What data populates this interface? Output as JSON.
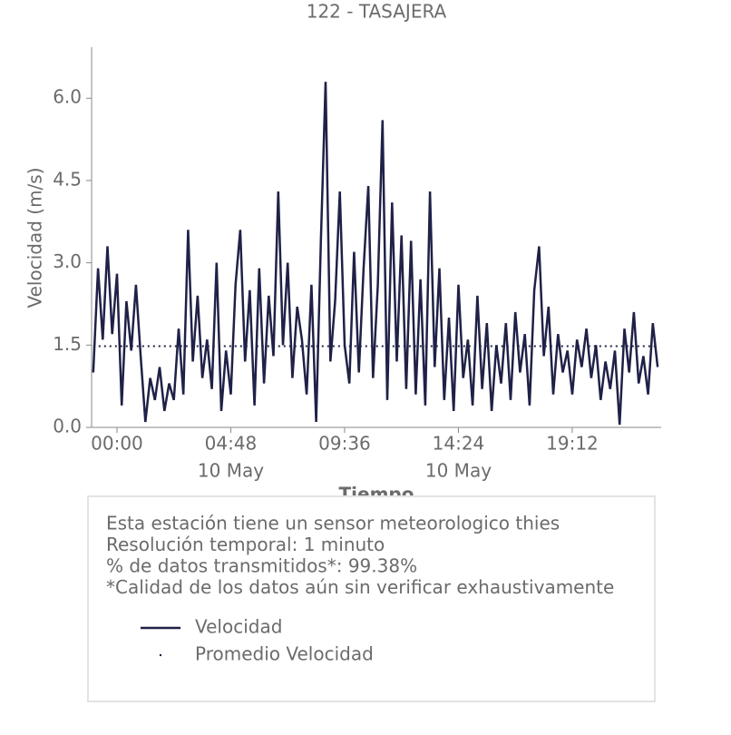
{
  "chart_data": {
    "type": "line",
    "title": "122 - TASAJERA",
    "xlabel": "Tiempo",
    "ylabel": "Velocidad (m/s)",
    "xlim": [
      -1.07,
      22.95
    ],
    "ylim": [
      0,
      6.93
    ],
    "xticks": [
      {
        "value": 0,
        "label": "00:00"
      },
      {
        "value": 4.8,
        "label": "04:48",
        "date": "10 May"
      },
      {
        "value": 9.6,
        "label": "09:36"
      },
      {
        "value": 14.4,
        "label": "14:24",
        "date": "10 May"
      },
      {
        "value": 19.2,
        "label": "19:12"
      }
    ],
    "yticks": [
      {
        "value": 0,
        "label": "0.0"
      },
      1.5,
      {
        "value": 3,
        "label": "3.0"
      },
      4.5,
      {
        "value": 6,
        "label": "6.0"
      }
    ],
    "notes": [
      "Esta estación tiene un sensor meteorologico thies",
      "Resolución temporal: 1 minuto",
      "% de datos transmitidos*: 99.38%",
      "*Calidad de los datos aún sin verificar exhaustivamente"
    ],
    "series": [
      {
        "name": "Velocidad",
        "color": "#1f2147",
        "style": "solid",
        "x": [
          -1.0,
          -0.8,
          -0.6,
          -0.4,
          -0.2,
          0.0,
          0.2,
          0.4,
          0.6,
          0.8,
          1.0,
          1.2,
          1.4,
          1.6,
          1.8,
          2.0,
          2.2,
          2.4,
          2.6,
          2.8,
          3.0,
          3.2,
          3.4,
          3.6,
          3.8,
          4.0,
          4.2,
          4.4,
          4.6,
          4.8,
          5.0,
          5.2,
          5.4,
          5.6,
          5.8,
          6.0,
          6.2,
          6.4,
          6.6,
          6.8,
          7.0,
          7.2,
          7.4,
          7.6,
          7.8,
          8.0,
          8.2,
          8.4,
          8.6,
          8.8,
          9.0,
          9.2,
          9.4,
          9.6,
          9.8,
          10.0,
          10.2,
          10.4,
          10.6,
          10.8,
          11.0,
          11.2,
          11.4,
          11.6,
          11.8,
          12.0,
          12.2,
          12.4,
          12.6,
          12.8,
          13.0,
          13.2,
          13.4,
          13.6,
          13.8,
          14.0,
          14.2,
          14.4,
          14.6,
          14.8,
          15.0,
          15.2,
          15.4,
          15.6,
          15.8,
          16.0,
          16.2,
          16.4,
          16.6,
          16.8,
          17.0,
          17.2,
          17.4,
          17.6,
          17.8,
          18.0,
          18.2,
          18.4,
          18.6,
          18.8,
          19.0,
          19.2,
          19.4,
          19.6,
          19.8,
          20.0,
          20.2,
          20.4,
          20.6,
          20.8,
          21.0,
          21.2,
          21.4,
          21.6,
          21.8,
          22.0,
          22.2,
          22.4,
          22.6,
          22.8
        ],
        "values": [
          1.0,
          2.9,
          1.6,
          3.3,
          1.7,
          2.8,
          0.4,
          2.3,
          1.4,
          2.6,
          1.3,
          0.1,
          0.9,
          0.5,
          1.1,
          0.3,
          0.8,
          0.5,
          1.8,
          0.6,
          3.6,
          1.2,
          2.4,
          0.9,
          1.6,
          0.7,
          3.0,
          0.3,
          1.4,
          0.6,
          2.6,
          3.6,
          1.2,
          2.5,
          0.4,
          2.9,
          0.8,
          2.4,
          1.3,
          4.3,
          1.5,
          3.0,
          0.9,
          2.2,
          1.6,
          0.6,
          2.6,
          0.1,
          3.4,
          6.3,
          1.2,
          2.3,
          4.3,
          1.5,
          0.8,
          3.2,
          1.0,
          2.9,
          4.4,
          0.9,
          2.6,
          5.6,
          0.5,
          4.1,
          1.2,
          3.5,
          0.7,
          3.4,
          0.6,
          2.7,
          0.4,
          4.3,
          1.1,
          2.9,
          0.5,
          2.0,
          0.3,
          2.6,
          0.9,
          1.6,
          0.4,
          2.4,
          0.7,
          1.9,
          0.3,
          1.5,
          0.8,
          1.9,
          0.5,
          2.1,
          1.0,
          1.7,
          0.4,
          2.5,
          3.3,
          1.3,
          2.2,
          0.6,
          1.7,
          1.0,
          1.4,
          0.6,
          1.6,
          1.1,
          1.8,
          0.9,
          1.5,
          0.5,
          1.2,
          0.7,
          1.4,
          0.05,
          1.8,
          1.0,
          2.1,
          0.8,
          1.3,
          0.6,
          1.9,
          1.1
        ]
      },
      {
        "name": "Promedio Velocidad",
        "color": "#1f2147",
        "style": "dotted",
        "x": [
          -1.0,
          22.8
        ],
        "values": [
          1.48,
          1.48
        ]
      }
    ]
  }
}
